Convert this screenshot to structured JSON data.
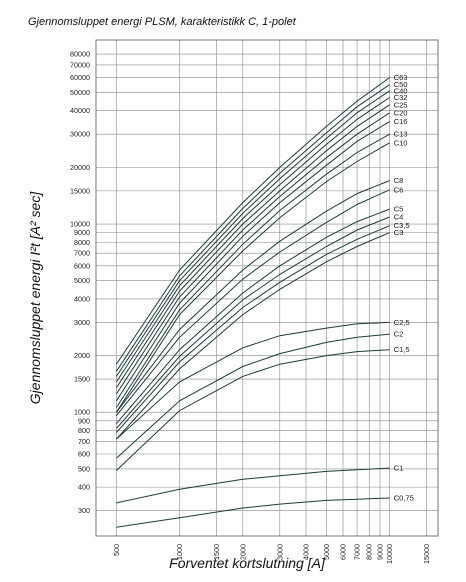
{
  "chart_data": {
    "type": "line",
    "title": "Gjennomsluppet energi PLSM, karakteristikk C, 1-polet",
    "xlabel": "Forventet kortslutning [A]",
    "ylabel": "Gjennomsluppet energi  I²t [A² sec]",
    "x_scale": "log",
    "y_scale": "log",
    "xlim": [
      400,
      17000
    ],
    "ylim": [
      220,
      95000
    ],
    "grid": true,
    "x_ticks": [
      {
        "value": 500,
        "label": "500"
      },
      {
        "value": 1000,
        "label": "1000"
      },
      {
        "value": 1500,
        "label": "1500"
      },
      {
        "value": 2000,
        "label": "2000"
      },
      {
        "value": 3000,
        "label": "3000"
      },
      {
        "value": 4000,
        "label": "4000"
      },
      {
        "value": 5000,
        "label": "5000"
      },
      {
        "value": 6000,
        "label": "6000"
      },
      {
        "value": 7000,
        "label": "7000"
      },
      {
        "value": 8000,
        "label": "8000"
      },
      {
        "value": 9000,
        "label": "9000"
      },
      {
        "value": 10000,
        "label": "10000"
      },
      {
        "value": 15000,
        "label": "15000"
      }
    ],
    "y_ticks": [
      {
        "value": 300,
        "label": "300"
      },
      {
        "value": 400,
        "label": "400"
      },
      {
        "value": 500,
        "label": "500"
      },
      {
        "value": 600,
        "label": "600"
      },
      {
        "value": 700,
        "label": "700"
      },
      {
        "value": 800,
        "label": "800"
      },
      {
        "value": 900,
        "label": "900"
      },
      {
        "value": 1000,
        "label": "1000"
      },
      {
        "value": 1500,
        "label": "1500"
      },
      {
        "value": 2000,
        "label": "2000"
      },
      {
        "value": 3000,
        "label": "3000"
      },
      {
        "value": 4000,
        "label": "4000"
      },
      {
        "value": 5000,
        "label": "5000"
      },
      {
        "value": 6000,
        "label": "6000"
      },
      {
        "value": 7000,
        "label": "7000"
      },
      {
        "value": 8000,
        "label": "8000"
      },
      {
        "value": 9000,
        "label": "9000"
      },
      {
        "value": 10000,
        "label": "10000"
      },
      {
        "value": 15000,
        "label": "15000"
      },
      {
        "value": 20000,
        "label": "20000"
      },
      {
        "value": 30000,
        "label": "30000"
      },
      {
        "value": 40000,
        "label": "40000"
      },
      {
        "value": 50000,
        "label": "50000"
      },
      {
        "value": 60000,
        "label": "60000"
      },
      {
        "value": 70000,
        "label": "70000"
      },
      {
        "value": 80000,
        "label": "80000"
      }
    ],
    "x": [
      500,
      1000,
      2000,
      3000,
      5000,
      7000,
      10000
    ],
    "series": [
      {
        "name": "C0,75",
        "values": [
          245,
          275,
          310,
          325,
          340,
          345,
          350
        ]
      },
      {
        "name": "C1",
        "values": [
          330,
          390,
          440,
          460,
          485,
          495,
          505
        ]
      },
      {
        "name": "C1,5",
        "values": [
          490,
          1020,
          1550,
          1800,
          2000,
          2100,
          2150
        ]
      },
      {
        "name": "C2",
        "values": [
          570,
          1150,
          1750,
          2050,
          2350,
          2500,
          2600
        ]
      },
      {
        "name": "C2,5",
        "values": [
          720,
          1450,
          2200,
          2550,
          2800,
          2950,
          3000
        ]
      },
      {
        "name": "C3",
        "values": [
          720,
          1700,
          3300,
          4500,
          6300,
          7600,
          9000
        ]
      },
      {
        "name": "C3,5",
        "values": [
          780,
          1850,
          3600,
          4900,
          6900,
          8300,
          9800
        ]
      },
      {
        "name": "C4",
        "values": [
          820,
          1980,
          3950,
          5400,
          7600,
          9300,
          10900
        ]
      },
      {
        "name": "C5",
        "values": [
          870,
          2150,
          4300,
          6000,
          8500,
          10300,
          12000
        ]
      },
      {
        "name": "C6",
        "values": [
          960,
          2500,
          5100,
          7100,
          10200,
          12700,
          15200
        ]
      },
      {
        "name": "C8",
        "values": [
          1000,
          2750,
          5700,
          8100,
          11700,
          14500,
          17000
        ]
      },
      {
        "name": "C10",
        "values": [
          1000,
          3300,
          7200,
          10800,
          16800,
          21500,
          27000
        ]
      },
      {
        "name": "C13",
        "values": [
          1060,
          3500,
          7800,
          11800,
          18400,
          24000,
          30000
        ]
      },
      {
        "name": "C16",
        "values": [
          1150,
          3800,
          8600,
          13000,
          20500,
          27500,
          35000
        ]
      },
      {
        "name": "C20",
        "values": [
          1250,
          4100,
          9300,
          14000,
          22500,
          30000,
          39000
        ]
      },
      {
        "name": "C25",
        "values": [
          1350,
          4400,
          10000,
          15000,
          24500,
          33000,
          43000
        ]
      },
      {
        "name": "C32",
        "values": [
          1450,
          4700,
          10700,
          16200,
          26500,
          36000,
          47000
        ]
      },
      {
        "name": "C40",
        "values": [
          1550,
          5000,
          11400,
          17400,
          28500,
          39000,
          51000
        ]
      },
      {
        "name": "C50",
        "values": [
          1650,
          5300,
          12100,
          18600,
          30500,
          42000,
          55000
        ]
      },
      {
        "name": "C63",
        "values": [
          1800,
          5700,
          13000,
          20000,
          33000,
          45000,
          60000
        ]
      }
    ]
  }
}
